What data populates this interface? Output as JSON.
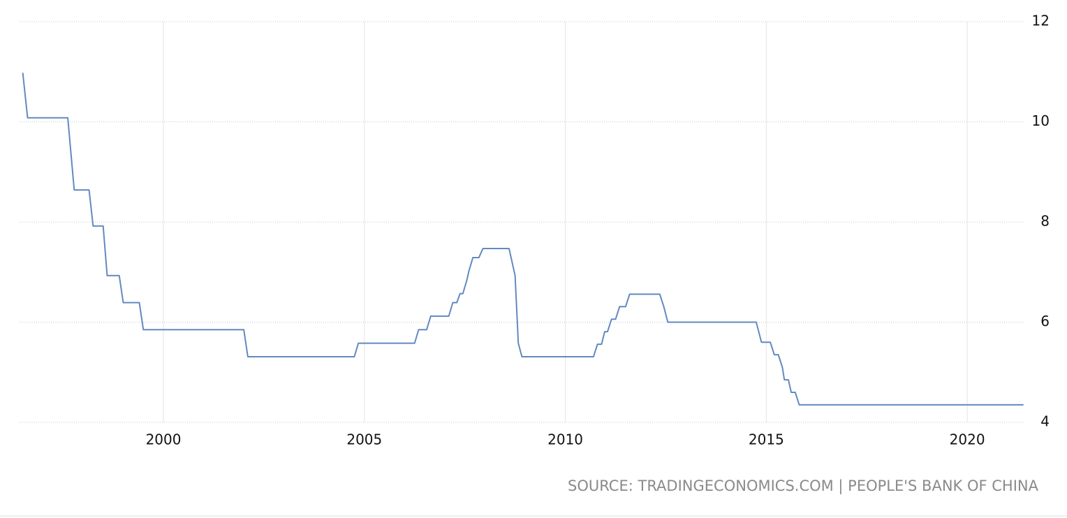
{
  "chart_data": {
    "type": "line",
    "source": "SOURCE: TRADINGECONOMICS.COM | PEOPLE'S BANK OF CHINA",
    "x": [
      1996.5,
      1996.62,
      1997.62,
      1997.78,
      1998.15,
      1998.25,
      1998.5,
      1998.6,
      1998.9,
      1999.0,
      1999.4,
      1999.5,
      2002.0,
      2002.1,
      2004.75,
      2004.85,
      2006.25,
      2006.35,
      2006.55,
      2006.65,
      2007.1,
      2007.2,
      2007.3,
      2007.38,
      2007.45,
      2007.55,
      2007.6,
      2007.7,
      2007.85,
      2007.95,
      2008.6,
      2008.75,
      2008.83,
      2008.92,
      2010.7,
      2010.8,
      2010.9,
      2010.98,
      2011.05,
      2011.15,
      2011.25,
      2011.35,
      2011.5,
      2011.6,
      2012.35,
      2012.45,
      2012.55,
      2014.75,
      2014.88,
      2015.1,
      2015.2,
      2015.3,
      2015.4,
      2015.45,
      2015.55,
      2015.62,
      2015.72,
      2015.82,
      2021.4
    ],
    "values": [
      10.98,
      10.08,
      10.08,
      8.64,
      8.64,
      7.92,
      7.92,
      6.93,
      6.93,
      6.39,
      6.39,
      5.85,
      5.85,
      5.31,
      5.31,
      5.58,
      5.58,
      5.85,
      5.85,
      6.12,
      6.12,
      6.39,
      6.39,
      6.57,
      6.57,
      6.84,
      7.02,
      7.29,
      7.29,
      7.47,
      7.47,
      6.93,
      5.58,
      5.31,
      5.31,
      5.56,
      5.56,
      5.81,
      5.81,
      6.06,
      6.06,
      6.31,
      6.31,
      6.56,
      6.56,
      6.31,
      6.0,
      6.0,
      5.6,
      5.6,
      5.35,
      5.35,
      5.1,
      4.85,
      4.85,
      4.6,
      4.6,
      4.35,
      4.35
    ],
    "color": "#6289c0",
    "xlim": [
      1996.42,
      2021.44
    ],
    "xticks": [
      2000,
      2005,
      2010,
      2015,
      2020
    ],
    "ylim": [
      4,
      12
    ],
    "yticks": [
      4,
      6,
      8,
      10,
      12
    ],
    "grid": true
  }
}
